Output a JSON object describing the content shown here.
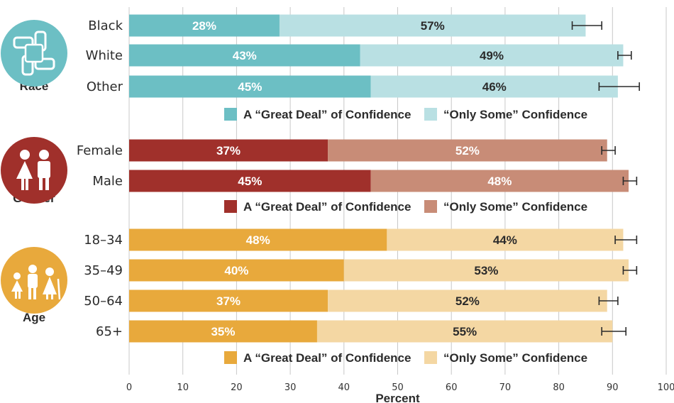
{
  "chart_data": {
    "type": "bar",
    "orientation": "horizontal",
    "stacked": true,
    "xlabel": "Percent",
    "xlim": [
      0,
      100
    ],
    "x_ticks": [
      0,
      10,
      20,
      30,
      40,
      50,
      60,
      70,
      80,
      90,
      100
    ],
    "grid": true,
    "groups": [
      {
        "name": "Race",
        "icon": "hands-icon",
        "color_dark": "#6cbfc4",
        "color_light": "#b9e0e3",
        "dark_text_color": "#ffffff",
        "light_text_color": "#2b2b2b",
        "legend": [
          "A “Great Deal” of Confidence",
          "“Only Some” Confidence"
        ],
        "categories": [
          {
            "label": "Black",
            "great_deal": 28,
            "only_some": 57,
            "err_low": 82.5,
            "err_high": 88
          },
          {
            "label": "White",
            "great_deal": 43,
            "only_some": 49,
            "err_low": 91,
            "err_high": 93.5
          },
          {
            "label": "Other",
            "great_deal": 45,
            "only_some": 46,
            "err_low": 87.5,
            "err_high": 95
          }
        ]
      },
      {
        "name": "Gender",
        "icon": "couple-icon",
        "color_dark": "#a0302b",
        "color_light": "#c88c77",
        "dark_text_color": "#ffffff",
        "light_text_color": "#ffffff",
        "legend": [
          "A “Great Deal” of Confidence",
          "“Only Some” Confidence"
        ],
        "categories": [
          {
            "label": "Female",
            "great_deal": 37,
            "only_some": 52,
            "err_low": 88,
            "err_high": 90.5
          },
          {
            "label": "Male",
            "great_deal": 45,
            "only_some": 48,
            "err_low": 92,
            "err_high": 94.5
          }
        ]
      },
      {
        "name": "Age",
        "icon": "family-icon",
        "color_dark": "#e8a93c",
        "color_light": "#f4d7a3",
        "dark_text_color": "#ffffff",
        "light_text_color": "#2b2b2b",
        "legend": [
          "A “Great Deal” of Confidence",
          "“Only Some” Confidence"
        ],
        "categories": [
          {
            "label": "18–34",
            "great_deal": 48,
            "only_some": 44,
            "err_low": 90.5,
            "err_high": 94.5
          },
          {
            "label": "35–49",
            "great_deal": 40,
            "only_some": 53,
            "err_low": 92,
            "err_high": 94.5
          },
          {
            "label": "50–64",
            "great_deal": 37,
            "only_some": 52,
            "err_low": 87.5,
            "err_high": 91
          },
          {
            "label": "65+",
            "great_deal": 35,
            "only_some": 55,
            "err_low": 88,
            "err_high": 92.5
          }
        ]
      }
    ]
  }
}
